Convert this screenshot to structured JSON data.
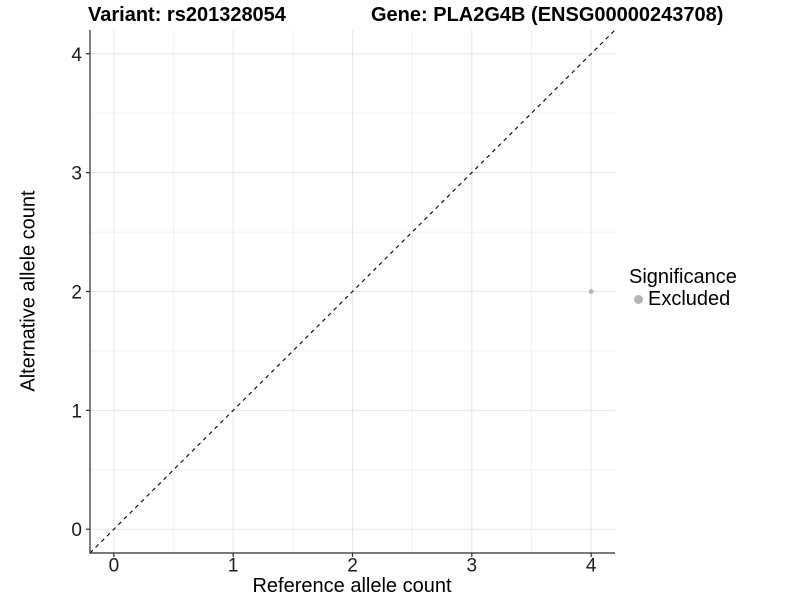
{
  "header": {
    "variant_title": "Variant: rs201328054",
    "gene_title": "Gene: PLA2G4B (ENSG00000243708)"
  },
  "chart_data": {
    "type": "scatter",
    "xlabel": "Reference allele count",
    "ylabel": "Alternative allele count",
    "xlim": [
      -0.2,
      4.2
    ],
    "ylim": [
      -0.2,
      4.2
    ],
    "x_ticks": [
      0,
      1,
      2,
      3,
      4
    ],
    "y_ticks": [
      0,
      1,
      2,
      3,
      4
    ],
    "x_minor": [
      0.5,
      1.5,
      2.5,
      3.5
    ],
    "y_minor": [
      0.5,
      1.5,
      2.5,
      3.5
    ],
    "grid": true,
    "points": [
      {
        "x": 4,
        "y": 2,
        "significance": "Excluded"
      }
    ],
    "identity_line": {
      "style": "dashed",
      "from": -0.2,
      "to": 4.2
    },
    "legend": {
      "title": "Significance",
      "position": "right",
      "entries": [
        {
          "label": "Excluded",
          "color": "#b4b4b4"
        }
      ]
    },
    "colors": {
      "point": "#b4b4b4",
      "grid_major": "#e6e6e6",
      "grid_minor": "#f2f2f2",
      "axis_line": "#2b2b2b",
      "tick_text": "#1a1a1a",
      "identity_line": "#000000",
      "background": "#ffffff"
    }
  }
}
